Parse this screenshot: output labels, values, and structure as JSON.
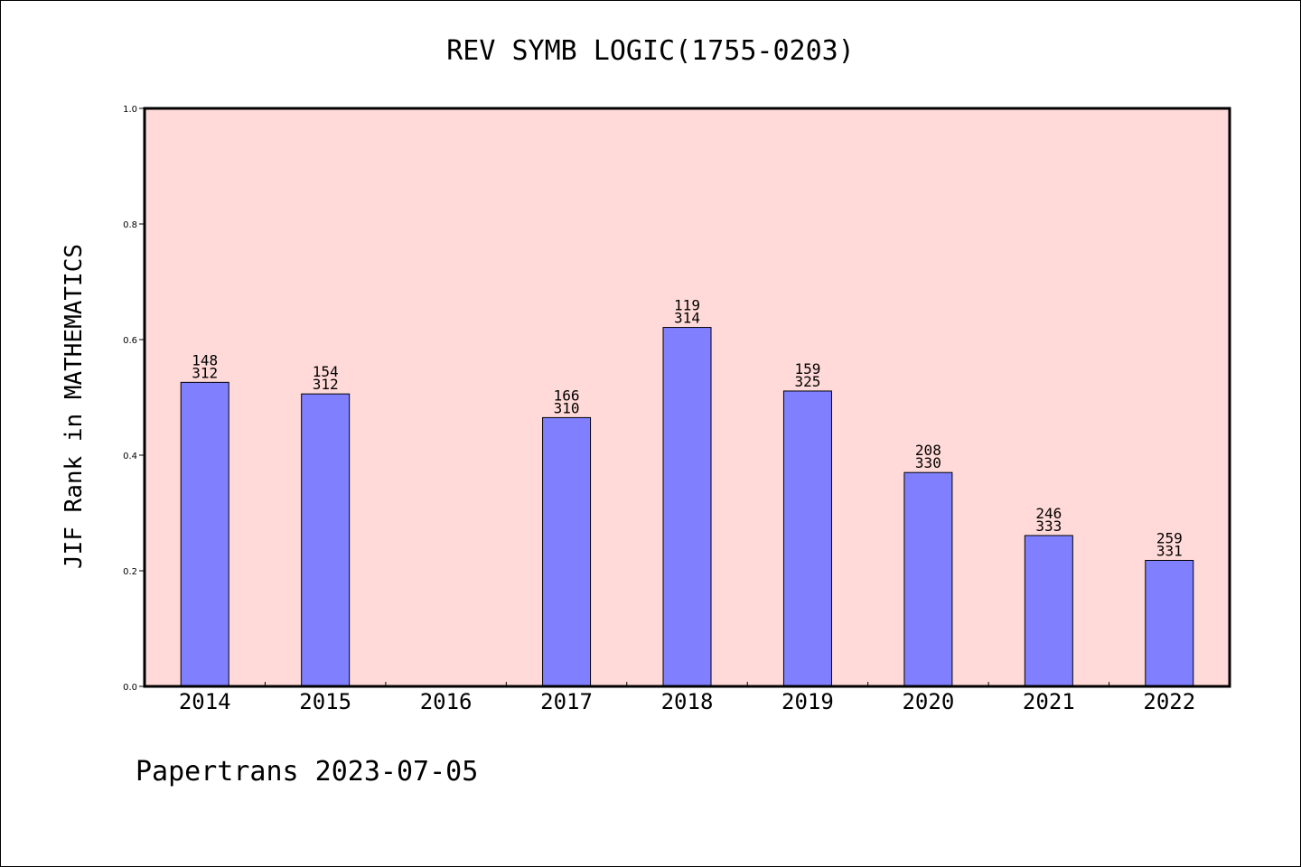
{
  "chart_data": {
    "type": "bar",
    "title": "REV SYMB LOGIC(1755-0203)",
    "ylabel": "JIF Rank in MATHEMATICS",
    "xlabel": "",
    "ylim": [
      0,
      1.0
    ],
    "yticks": [
      "0.0",
      "0.2",
      "0.4",
      "0.6",
      "0.8",
      "1.0"
    ],
    "categories": [
      "2014",
      "2015",
      "2016",
      "2017",
      "2018",
      "2019",
      "2020",
      "2021",
      "2022"
    ],
    "values": [
      0.526,
      0.506,
      null,
      0.465,
      0.621,
      0.511,
      0.37,
      0.261,
      0.218
    ],
    "rank_labels": [
      {
        "rank": "148",
        "total": "312"
      },
      {
        "rank": "154",
        "total": "312"
      },
      null,
      {
        "rank": "166",
        "total": "310"
      },
      {
        "rank": "119",
        "total": "314"
      },
      {
        "rank": "159",
        "total": "325"
      },
      {
        "rank": "208",
        "total": "330"
      },
      {
        "rank": "246",
        "total": "333"
      },
      {
        "rank": "259",
        "total": "331"
      }
    ],
    "grid": false,
    "colors": {
      "plot_background": "#ffdad8",
      "bar_fill": "#8080ff",
      "bar_stroke": "#000000"
    }
  },
  "footer": "Papertrans 2023-07-05"
}
